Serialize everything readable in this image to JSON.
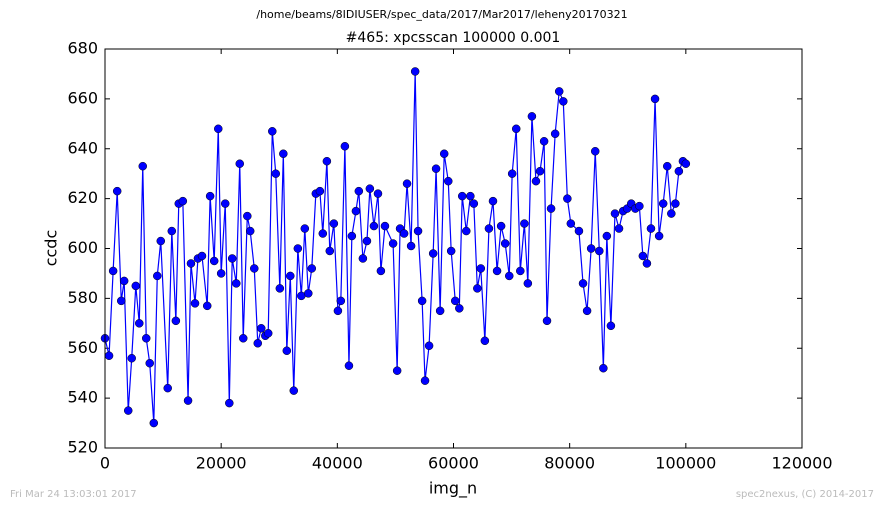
{
  "chart_data": {
    "type": "line",
    "suptitle": "/home/beams/8IDIUSER/spec_data/2017/Mar2017/leheny20170321",
    "title": "#465: xpcsscan 100000 0.001",
    "xlabel": "img_n",
    "ylabel": "ccdc",
    "footer_left": "Fri Mar 24 13:03:01 2017",
    "footer_right": "spec2nexus, (C) 2014-2017",
    "xlim": [
      0,
      120000
    ],
    "xticks": [
      0,
      20000,
      40000,
      60000,
      80000,
      100000,
      120000
    ],
    "ylim": [
      520,
      680
    ],
    "yticks": [
      520,
      540,
      560,
      580,
      600,
      620,
      640,
      660,
      680
    ],
    "grid": false,
    "marker": "o",
    "x": [
      0,
      700,
      1400,
      2100,
      2800,
      3300,
      4000,
      4600,
      5300,
      5900,
      6500,
      7100,
      7700,
      8400,
      9000,
      9600,
      10800,
      11500,
      12200,
      12700,
      13400,
      14300,
      14800,
      15500,
      16000,
      16700,
      17600,
      18100,
      18800,
      19500,
      20000,
      20700,
      21400,
      21900,
      22600,
      23200,
      23800,
      24500,
      25000,
      25700,
      26300,
      26900,
      27600,
      28100,
      28800,
      29400,
      30100,
      30700,
      31300,
      31900,
      32500,
      33200,
      33800,
      34400,
      35000,
      35600,
      36300,
      37000,
      37500,
      38200,
      38700,
      39400,
      40100,
      40600,
      41300,
      42000,
      42500,
      43200,
      43700,
      44400,
      45100,
      45600,
      46300,
      47000,
      47500,
      48200,
      49600,
      50300,
      50800,
      51500,
      52000,
      52700,
      53400,
      53900,
      54600,
      55100,
      55800,
      56500,
      57000,
      57700,
      58400,
      59100,
      59600,
      60300,
      61000,
      61500,
      62200,
      62900,
      63500,
      64100,
      64700,
      65400,
      66100,
      66800,
      67500,
      68200,
      68900,
      69600,
      70100,
      70800,
      71500,
      72200,
      72800,
      73500,
      74200,
      74900,
      75600,
      76100,
      76800,
      77500,
      78200,
      78900,
      79600,
      80200,
      81600,
      82300,
      83000,
      83700,
      84400,
      85100,
      85800,
      86400,
      87100,
      87800,
      88500,
      89200,
      89900,
      90600,
      91300,
      92000,
      92600,
      93300,
      94000,
      94700,
      95400,
      96100,
      96800,
      97500,
      98200,
      98800,
      99500,
      100000
    ],
    "series": [
      {
        "color": "#0000ff",
        "values": [
          564,
          557,
          591,
          623,
          579,
          587,
          535,
          556,
          585,
          570,
          633,
          564,
          554,
          530,
          589,
          603,
          544,
          607,
          571,
          618,
          619,
          539,
          594,
          578,
          596,
          597,
          577,
          621,
          595,
          648,
          590,
          618,
          538,
          596,
          586,
          634,
          564,
          613,
          607,
          592,
          562,
          568,
          565,
          566,
          647,
          630,
          584,
          638,
          559,
          589,
          543,
          600,
          581,
          608,
          582,
          592,
          622,
          623,
          606,
          635,
          599,
          610,
          575,
          579,
          641,
          553,
          605,
          615,
          623,
          596,
          603,
          624,
          609,
          622,
          591,
          609,
          602,
          551,
          608,
          606,
          626,
          601,
          671,
          607,
          579,
          547,
          561,
          598,
          632,
          575,
          638,
          627,
          599,
          579,
          576,
          621,
          607,
          621,
          618,
          584,
          592,
          563,
          608,
          619,
          591,
          609,
          602,
          589,
          630,
          648,
          591,
          610,
          586,
          653,
          627,
          631,
          643,
          571,
          616,
          646,
          663,
          659,
          620,
          610,
          607,
          586,
          575,
          600,
          639,
          599,
          552,
          605,
          569,
          614,
          608,
          615,
          616,
          618,
          616,
          617,
          597,
          594,
          608,
          660,
          605,
          618,
          633,
          614,
          618,
          631,
          635,
          634
        ]
      }
    ]
  }
}
